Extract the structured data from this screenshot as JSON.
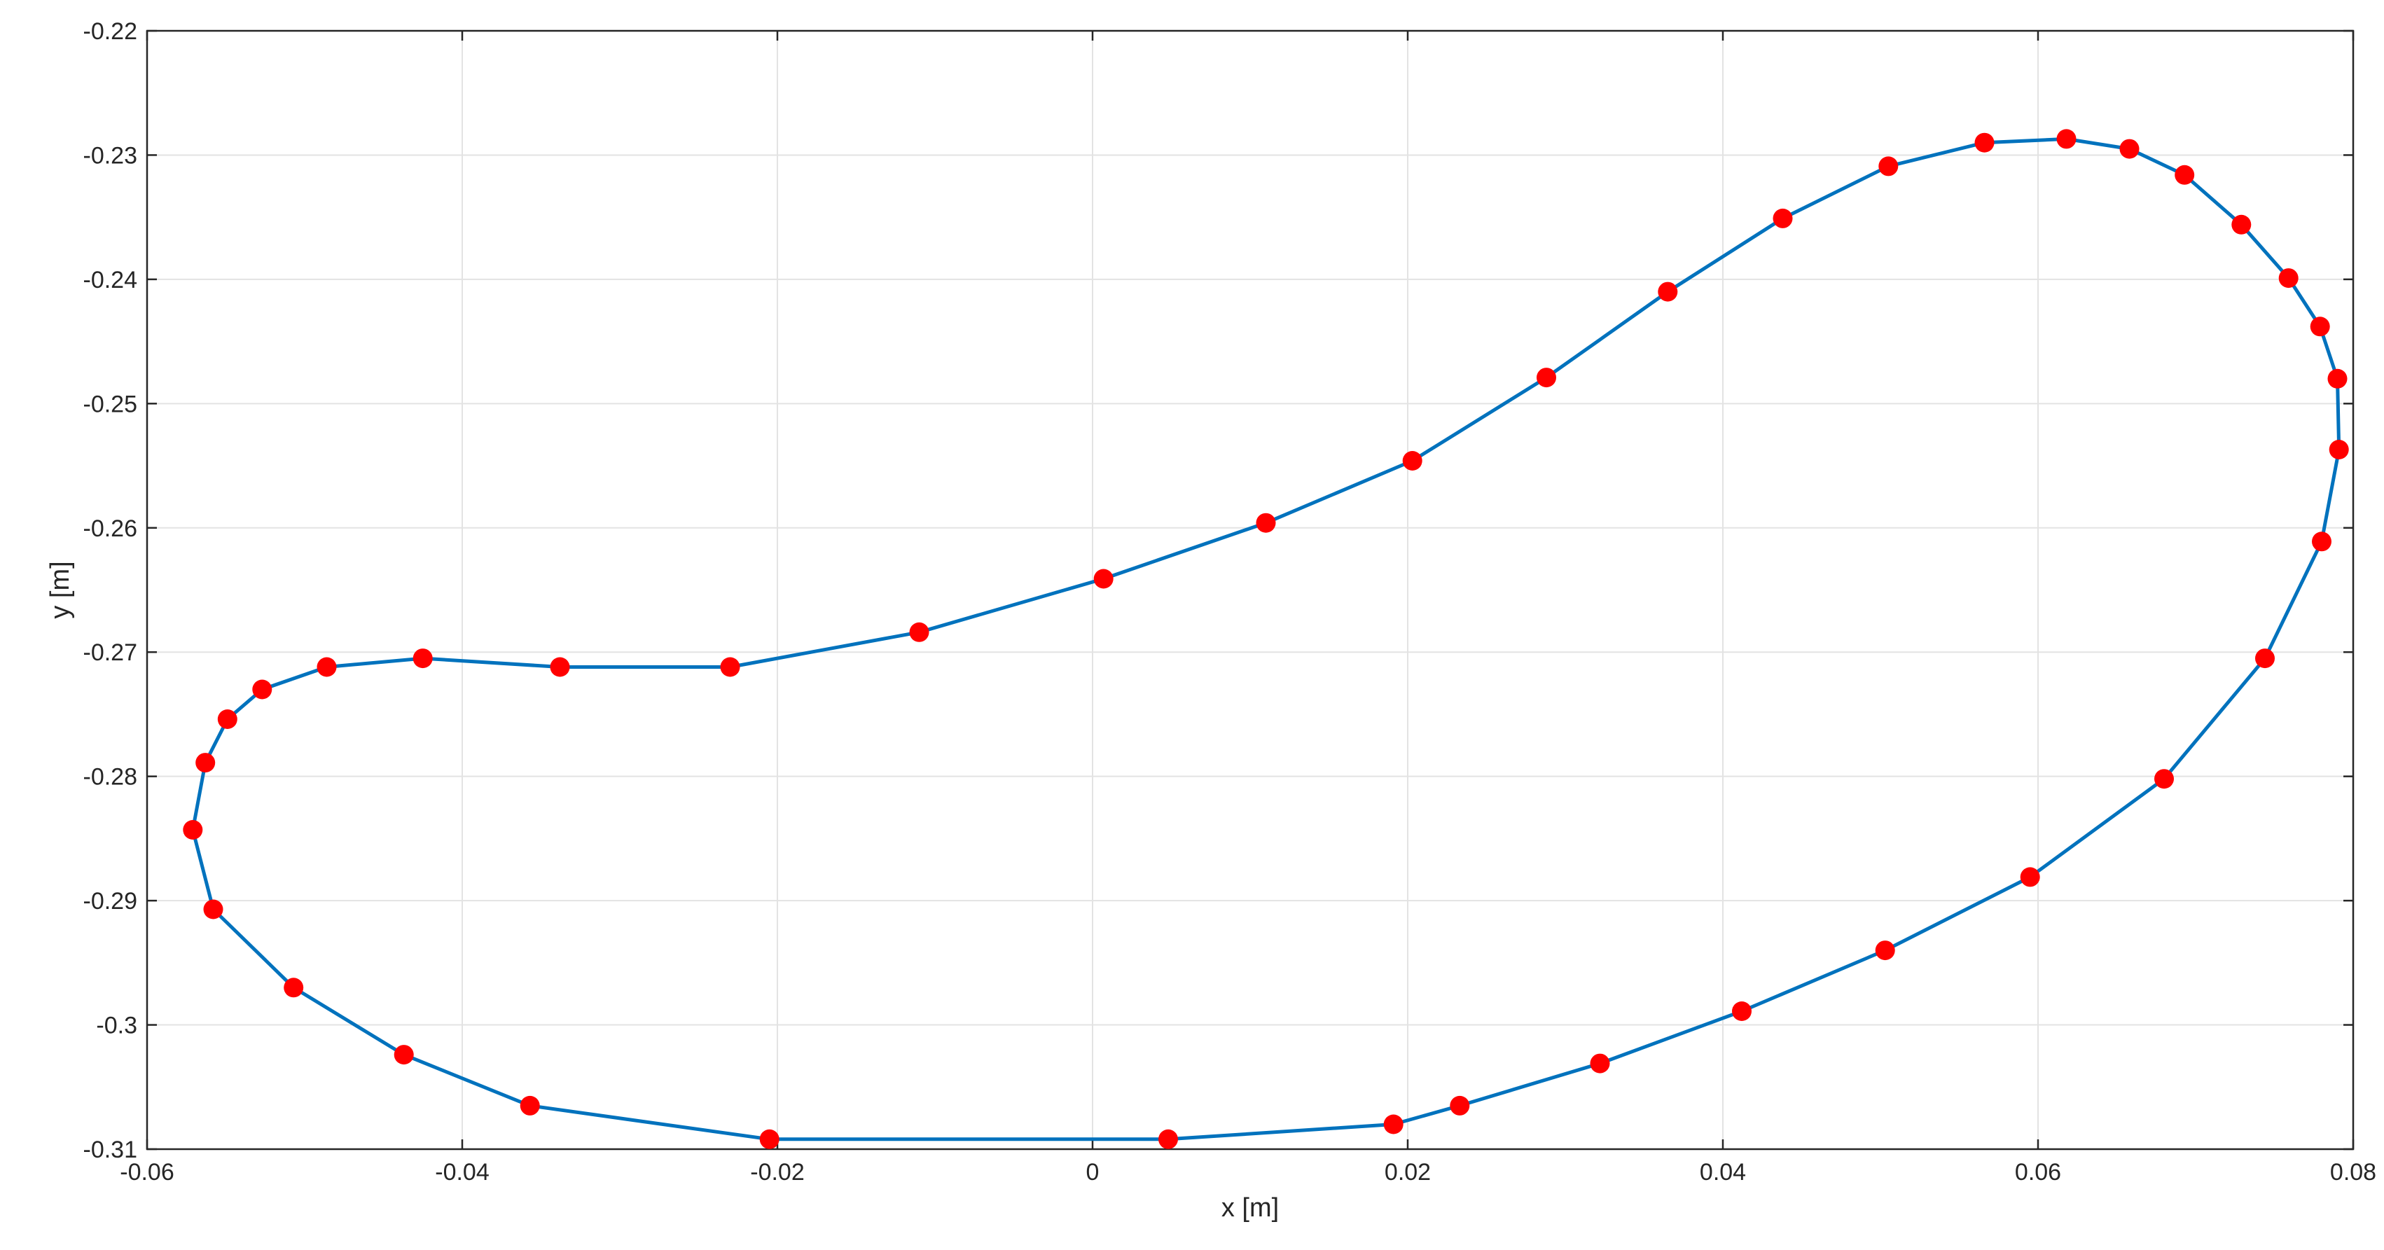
{
  "chart_data": {
    "type": "line",
    "title": "",
    "xlabel": "x [m]",
    "ylabel": "y [m]",
    "xlim": [
      -0.06,
      0.08
    ],
    "ylim": [
      -0.31,
      -0.22
    ],
    "grid": true,
    "x_ticks": [
      -0.06,
      -0.04,
      -0.02,
      0,
      0.02,
      0.04,
      0.06,
      0.08
    ],
    "x_tick_labels": [
      "-0.06",
      "-0.04",
      "-0.02",
      "0",
      "0.02",
      "0.04",
      "0.06",
      "0.08"
    ],
    "y_ticks": [
      -0.22,
      -0.23,
      -0.24,
      -0.25,
      -0.26,
      -0.27,
      -0.28,
      -0.29,
      -0.3,
      -0.31
    ],
    "y_tick_labels": [
      "-0.22",
      "-0.23",
      "-0.24",
      "-0.25",
      "-0.26",
      "-0.27",
      "-0.28",
      "-0.29",
      "-0.3",
      "-0.31"
    ],
    "line_color": "#0072bd",
    "marker_color": "#ff0000",
    "closed": true,
    "series": [
      {
        "x": [
          -0.0571,
          -0.0563,
          -0.0549,
          -0.0527,
          -0.0486,
          -0.0425,
          -0.0338,
          -0.023,
          -0.011,
          0.0007,
          0.011,
          0.0203,
          0.0288,
          0.0365,
          0.0438,
          0.0505,
          0.0566,
          0.0618,
          0.0658,
          0.0693,
          0.0729,
          0.0759,
          0.0779,
          0.079,
          0.0791,
          0.078,
          0.0744,
          0.068,
          0.0595,
          0.0503,
          0.0412,
          0.0322,
          0.0233,
          0.0191,
          0.0048,
          -0.0205,
          -0.0357,
          -0.0437,
          -0.0507,
          -0.0558,
          -0.0571
        ],
        "y": [
          -0.2843,
          -0.2789,
          -0.2754,
          -0.273,
          -0.2712,
          -0.2705,
          -0.2712,
          -0.2712,
          -0.2684,
          -0.2641,
          -0.2596,
          -0.2546,
          -0.2479,
          -0.241,
          -0.2351,
          -0.2309,
          -0.229,
          -0.2287,
          -0.2295,
          -0.2316,
          -0.2356,
          -0.2399,
          -0.2438,
          -0.248,
          -0.2537,
          -0.2611,
          -0.2705,
          -0.2802,
          -0.2881,
          -0.294,
          -0.2989,
          -0.3031,
          -0.3065,
          -0.308,
          -0.3092,
          -0.3092,
          -0.3065,
          -0.3024,
          -0.297,
          -0.2907,
          -0.2843
        ]
      }
    ]
  }
}
